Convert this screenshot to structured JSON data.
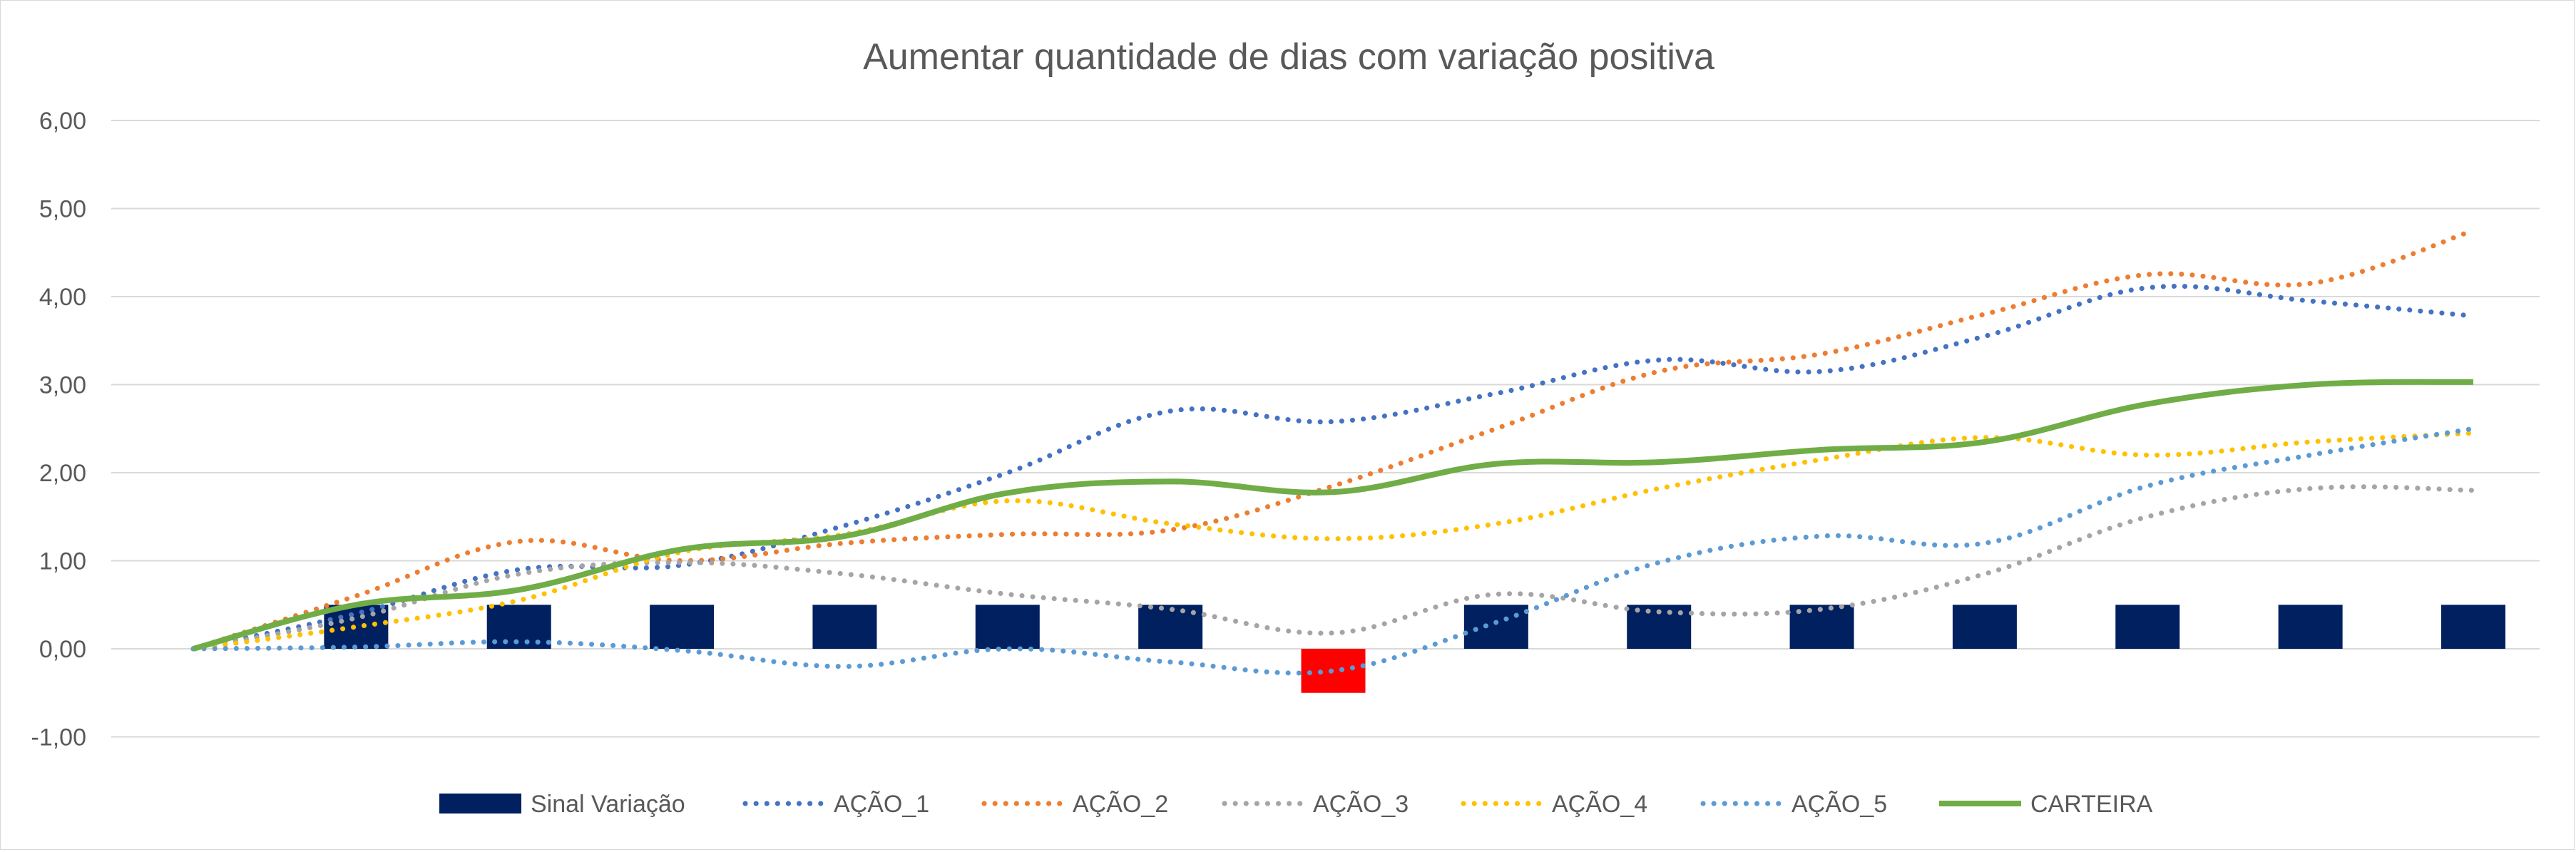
{
  "chart_data": {
    "type": "line",
    "title": "Aumentar quantidade de dias com variação positiva",
    "xlabel": "",
    "ylabel": "",
    "ylim": [
      -1,
      6
    ],
    "yticks": [
      "-1,00",
      "0,00",
      "1,00",
      "2,00",
      "3,00",
      "4,00",
      "5,00",
      "6,00"
    ],
    "grid": true,
    "legend_position": "bottom",
    "x": [
      1,
      2,
      3,
      4,
      5,
      6,
      7,
      8,
      9,
      10,
      11,
      12,
      13,
      14,
      15
    ],
    "bars": {
      "name": "Sinal Variação",
      "color": "#002060",
      "negative_color": "#ff0000",
      "values": [
        null,
        0.5,
        0.5,
        0.5,
        0.5,
        0.5,
        0.5,
        -0.5,
        0.5,
        0.5,
        0.5,
        0.5,
        0.5,
        0.5,
        0.5
      ]
    },
    "series": [
      {
        "name": "AÇÃO_1",
        "color": "#4472c4",
        "style": "dotted",
        "values": [
          0,
          0.4,
          0.9,
          0.95,
          1.4,
          2.0,
          2.7,
          2.58,
          2.9,
          3.28,
          3.15,
          3.55,
          4.1,
          3.95,
          3.78
        ]
      },
      {
        "name": "AÇÃO_2",
        "color": "#ed7d31",
        "style": "dotted",
        "values": [
          0,
          0.6,
          1.22,
          1.0,
          1.2,
          1.3,
          1.35,
          1.85,
          2.5,
          3.15,
          3.35,
          3.8,
          4.25,
          4.15,
          4.75
        ]
      },
      {
        "name": "AÇÃO_3",
        "color": "#a5a5a5",
        "style": "dotted",
        "values": [
          0,
          0.35,
          0.85,
          0.98,
          0.85,
          0.62,
          0.45,
          0.18,
          0.62,
          0.42,
          0.45,
          0.85,
          1.5,
          1.82,
          1.8
        ]
      },
      {
        "name": "AÇÃO_4",
        "color": "#ffc000",
        "style": "dotted",
        "values": [
          0,
          0.25,
          0.55,
          1.1,
          1.3,
          1.68,
          1.42,
          1.25,
          1.42,
          1.82,
          2.15,
          2.4,
          2.2,
          2.35,
          2.45
        ]
      },
      {
        "name": "AÇÃO_5",
        "color": "#5b9bd5",
        "style": "dotted",
        "values": [
          0,
          0.02,
          0.08,
          -0.02,
          -0.2,
          0.0,
          -0.15,
          -0.25,
          0.3,
          0.98,
          1.28,
          1.2,
          1.85,
          2.2,
          2.5
        ]
      },
      {
        "name": "CARTEIRA",
        "color": "#70ad47",
        "style": "solid",
        "values": [
          0,
          0.5,
          0.67,
          1.13,
          1.28,
          1.77,
          1.9,
          1.78,
          2.1,
          2.12,
          2.26,
          2.35,
          2.78,
          3.0,
          3.03
        ]
      }
    ]
  }
}
